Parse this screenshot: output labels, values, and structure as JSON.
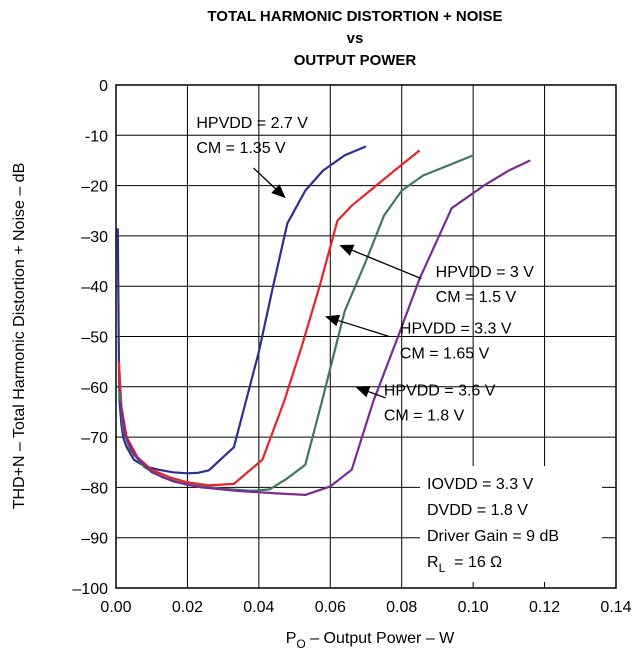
{
  "chart_data": {
    "type": "line",
    "title_lines": [
      "TOTAL HARMONIC DISTORTION + NOISE",
      "vs",
      "OUTPUT POWER"
    ],
    "xlabel_main": "P",
    "xlabel_sub": "O",
    "xlabel_rest": " – Output Power – W",
    "ylabel": "THD+N – Total Harmonic Distortion + Noise – dB",
    "xlim": [
      0,
      0.14
    ],
    "ylim": [
      -100,
      0
    ],
    "x_ticks": [
      0,
      0.02,
      0.04,
      0.06,
      0.08,
      0.1,
      0.12,
      0.14
    ],
    "x_tick_labels": [
      "0.00",
      "0.02",
      "0.04",
      "0.06",
      "0.08",
      "0.10",
      "0.12",
      "0.14"
    ],
    "y_ticks": [
      0,
      -10,
      -20,
      -30,
      -40,
      -50,
      -60,
      -70,
      -80,
      -90,
      -100
    ],
    "y_tick_labels": [
      "0",
      "-10",
      "–20",
      "–30",
      "–40",
      "–50",
      "–60",
      "–70",
      "–80",
      "–90",
      "–100"
    ],
    "grid": true,
    "series": [
      {
        "name": "HPVDD = 2.7 V, CM = 1.35 V",
        "color": "#2b2f8f",
        "x": [
          0.0005,
          0.0008,
          0.001,
          0.0015,
          0.002,
          0.003,
          0.005,
          0.008,
          0.012,
          0.016,
          0.02,
          0.023,
          0.026,
          0.033,
          0.04,
          0.044,
          0.048,
          0.053,
          0.058,
          0.064,
          0.07
        ],
        "y": [
          -28.5,
          -55,
          -63,
          -67.5,
          -70,
          -72,
          -74.5,
          -75.8,
          -76.5,
          -77,
          -77.2,
          -77.1,
          -76.6,
          -72,
          -53,
          -40,
          -27.5,
          -21,
          -17,
          -14,
          -12.2
        ]
      },
      {
        "name": "HPVDD = 3 V, CM = 1.5 V",
        "color": "#e8232a",
        "x": [
          0.0008,
          0.0015,
          0.003,
          0.006,
          0.01,
          0.015,
          0.02,
          0.026,
          0.033,
          0.041,
          0.047,
          0.052,
          0.057,
          0.062,
          0.066,
          0.072,
          0.078,
          0.085
        ],
        "y": [
          -55,
          -64,
          -70,
          -74,
          -76.5,
          -78,
          -79,
          -79.6,
          -79.3,
          -74.5,
          -63,
          -52,
          -40,
          -27,
          -24,
          -20.5,
          -17,
          -13
        ]
      },
      {
        "name": "HPVDD = 3.3 V, CM = 1.65 V",
        "color": "#3d7a5a",
        "x": [
          0.001,
          0.002,
          0.004,
          0.008,
          0.013,
          0.02,
          0.03,
          0.038,
          0.043,
          0.048,
          0.053,
          0.058,
          0.064,
          0.07,
          0.075,
          0.08,
          0.086,
          0.093,
          0.1
        ],
        "y": [
          -61,
          -68.5,
          -72.5,
          -76,
          -78,
          -79.5,
          -80.3,
          -80.7,
          -80.4,
          -78.2,
          -75.5,
          -62,
          -45,
          -35,
          -26,
          -21,
          -18,
          -16,
          -14
        ]
      },
      {
        "name": "HPVDD = 3.6 V, CM = 1.8 V",
        "color": "#7a2b91",
        "x": [
          0.0012,
          0.0025,
          0.005,
          0.01,
          0.016,
          0.024,
          0.034,
          0.045,
          0.053,
          0.06,
          0.066,
          0.072,
          0.079,
          0.085,
          0.094,
          0.103,
          0.11,
          0.116
        ],
        "y": [
          -63,
          -69.5,
          -73.5,
          -77,
          -78.8,
          -80,
          -80.7,
          -81.2,
          -81.5,
          -79.8,
          -76.5,
          -63,
          -50,
          -38.5,
          -24.5,
          -20,
          -17,
          -15
        ]
      }
    ],
    "annotations": [
      {
        "lines": [
          "HPVDD = 2.7 V",
          "CM = 1.35 V"
        ],
        "text_x": 0.0225,
        "text_y": -8.5,
        "arrow_from": [
          0.0385,
          -16.5
        ],
        "arrow_to": [
          0.0475,
          -22.5
        ]
      },
      {
        "lines": [
          "HPVDD = 3 V",
          "CM = 1.5 V"
        ],
        "text_x": 0.0895,
        "text_y": -38.2,
        "arrow_from": [
          0.0855,
          -38.5
        ],
        "arrow_to": [
          0.0625,
          -31.8
        ]
      },
      {
        "lines": [
          "HPVDD = 3.3 V",
          "CM = 1.65 V"
        ],
        "text_x": 0.0795,
        "text_y": -49.4,
        "arrow_from": [
          0.0765,
          -50.0
        ],
        "arrow_to": [
          0.0585,
          -46.0
        ]
      },
      {
        "lines": [
          "HPVDD = 3.6 V",
          "CM = 1.8 V"
        ],
        "text_x": 0.075,
        "text_y": -61.7,
        "arrow_from": [
          0.0755,
          -62.2
        ],
        "arrow_to": [
          0.067,
          -60.0
        ]
      }
    ],
    "conditions": {
      "lines": [
        "IOVDD = 3.3 V",
        "DVDD = 1.8 V",
        "Driver Gain = 9 dB"
      ],
      "rl_main": "R",
      "rl_sub": "L",
      "rl_rest": "  = 16 Ω"
    }
  }
}
